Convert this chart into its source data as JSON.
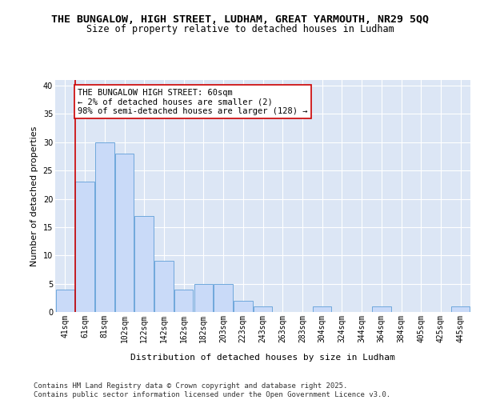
{
  "title_line1": "THE BUNGALOW, HIGH STREET, LUDHAM, GREAT YARMOUTH, NR29 5QQ",
  "title_line2": "Size of property relative to detached houses in Ludham",
  "xlabel": "Distribution of detached houses by size in Ludham",
  "ylabel": "Number of detached properties",
  "categories": [
    "41sqm",
    "61sqm",
    "81sqm",
    "102sqm",
    "122sqm",
    "142sqm",
    "162sqm",
    "182sqm",
    "203sqm",
    "223sqm",
    "243sqm",
    "263sqm",
    "283sqm",
    "304sqm",
    "324sqm",
    "344sqm",
    "364sqm",
    "384sqm",
    "405sqm",
    "425sqm",
    "445sqm"
  ],
  "values": [
    4,
    23,
    30,
    28,
    17,
    9,
    4,
    5,
    5,
    2,
    1,
    0,
    0,
    1,
    0,
    0,
    1,
    0,
    0,
    0,
    1
  ],
  "bar_color": "#c9daf8",
  "bar_edge_color": "#6fa8dc",
  "vline_x_index": 1,
  "vline_color": "#cc0000",
  "annotation_text": "THE BUNGALOW HIGH STREET: 60sqm\n← 2% of detached houses are smaller (2)\n98% of semi-detached houses are larger (128) →",
  "annotation_box_color": "#ffffff",
  "annotation_box_edge": "#cc0000",
  "ylim": [
    0,
    41
  ],
  "yticks": [
    0,
    5,
    10,
    15,
    20,
    25,
    30,
    35,
    40
  ],
  "footer_text": "Contains HM Land Registry data © Crown copyright and database right 2025.\nContains public sector information licensed under the Open Government Licence v3.0.",
  "background_color": "#ffffff",
  "plot_bg_color": "#dce6f5",
  "grid_color": "#ffffff",
  "title_fontsize": 9.5,
  "subtitle_fontsize": 8.5,
  "axis_label_fontsize": 8,
  "tick_fontsize": 7,
  "footer_fontsize": 6.5,
  "annotation_fontsize": 7.5
}
